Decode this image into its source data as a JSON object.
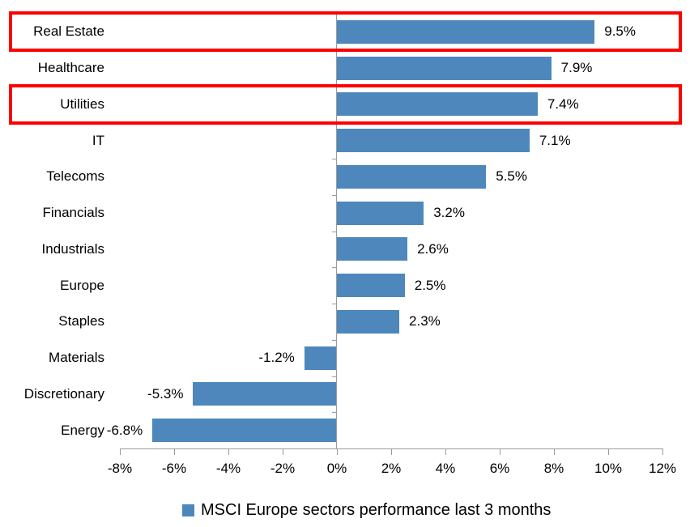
{
  "chart_data": {
    "type": "bar",
    "orientation": "horizontal",
    "categories": [
      "Real Estate",
      "Healthcare",
      "Utilities",
      "IT",
      "Telecoms",
      "Financials",
      "Industrials",
      "Europe",
      "Staples",
      "Materials",
      "Discretionary",
      "Energy"
    ],
    "values": [
      9.5,
      7.9,
      7.4,
      7.1,
      5.5,
      3.2,
      2.6,
      2.5,
      2.3,
      -1.2,
      -5.3,
      -6.8
    ],
    "value_labels": [
      "9.5%",
      "7.9%",
      "7.4%",
      "7.1%",
      "5.5%",
      "3.2%",
      "2.6%",
      "2.5%",
      "2.3%",
      "-1.2%",
      "-5.3%",
      "-6.8%"
    ],
    "x_tick_labels": [
      "-8%",
      "-6%",
      "-4%",
      "-2%",
      "0%",
      "2%",
      "4%",
      "6%",
      "8%",
      "10%",
      "12%"
    ],
    "xlim": [
      -8,
      12
    ],
    "grid": "off",
    "legend": "MSCI Europe sectors performance last 3 months",
    "legend_position": "bottom",
    "bar_color": "#4e87bb",
    "axis_color": "#9b9b9b",
    "text_color": "#000000",
    "highlight_color": "#fe0000",
    "highlighted_categories": [
      "Real Estate",
      "Utilities"
    ]
  }
}
